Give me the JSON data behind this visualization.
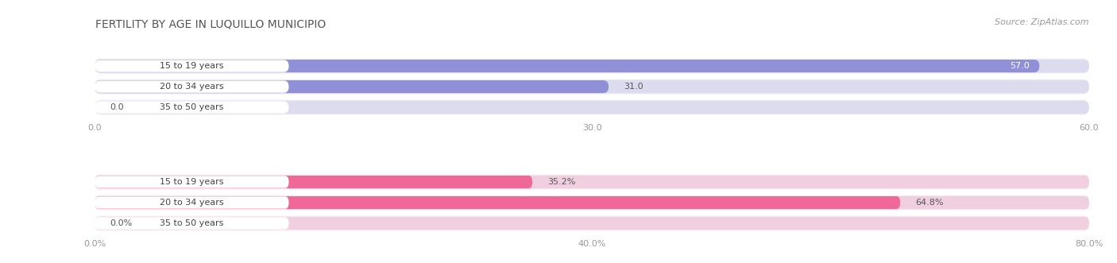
{
  "title": "FERTILITY BY AGE IN LUQUILLO MUNICIPIO",
  "source": "Source: ZipAtlas.com",
  "top_section": {
    "bars": [
      {
        "label": "15 to 19 years",
        "value": 57.0,
        "display": "57.0"
      },
      {
        "label": "20 to 34 years",
        "value": 31.0,
        "display": "31.0"
      },
      {
        "label": "35 to 50 years",
        "value": 0.0,
        "display": "0.0"
      }
    ],
    "bar_color": "#9090d8",
    "bg_color": "#dcdcee",
    "outer_bg": "#ebebf5",
    "x_max": 60.0,
    "x_ticks": [
      0.0,
      30.0,
      60.0
    ],
    "x_tick_labels": [
      "0.0",
      "30.0",
      "60.0"
    ]
  },
  "bottom_section": {
    "bars": [
      {
        "label": "15 to 19 years",
        "value": 35.2,
        "display": "35.2%"
      },
      {
        "label": "20 to 34 years",
        "value": 64.8,
        "display": "64.8%"
      },
      {
        "label": "35 to 50 years",
        "value": 0.0,
        "display": "0.0%"
      }
    ],
    "bar_color": "#f06898",
    "bg_color": "#f0d0e0",
    "outer_bg": "#f8eaf0",
    "x_max": 80.0,
    "x_ticks": [
      0.0,
      40.0,
      80.0
    ],
    "x_tick_labels": [
      "0.0%",
      "40.0%",
      "80.0%"
    ]
  },
  "bg_color": "#ffffff",
  "title_fontsize": 10,
  "source_fontsize": 8,
  "label_fontsize": 8,
  "tick_fontsize": 8,
  "value_fontsize": 8
}
